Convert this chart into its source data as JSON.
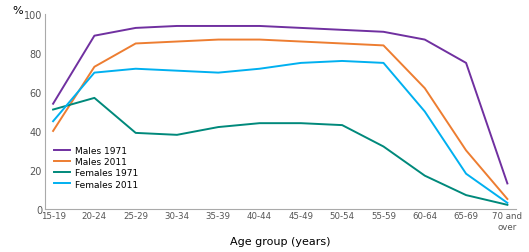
{
  "age_groups": [
    "15-19",
    "20-24",
    "25-29",
    "30-34",
    "35-39",
    "40-44",
    "45-49",
    "50-54",
    "55-59",
    "60-64",
    "65-69",
    "70 and\nover"
  ],
  "males_1971": [
    54,
    89,
    93,
    94,
    94,
    94,
    93,
    92,
    91,
    87,
    75,
    13
  ],
  "males_2011": [
    40,
    73,
    85,
    86,
    87,
    87,
    86,
    85,
    84,
    62,
    30,
    5
  ],
  "females_1971": [
    51,
    57,
    39,
    38,
    42,
    44,
    44,
    43,
    32,
    17,
    7,
    2
  ],
  "females_2011": [
    45,
    70,
    72,
    71,
    70,
    72,
    75,
    76,
    75,
    50,
    18,
    3
  ],
  "colors": {
    "males_1971": "#7030a0",
    "males_2011": "#ed7d31",
    "females_1971": "#00897b",
    "females_2011": "#00b0f0"
  },
  "labels": {
    "males_1971": "Males 1971",
    "males_2011": "Males 2011",
    "females_1971": "Females 1971",
    "females_2011": "Females 2011"
  },
  "ylabel": "%",
  "xlabel": "Age group (years)",
  "ylim": [
    0,
    100
  ],
  "yticks": [
    0,
    20,
    40,
    60,
    80,
    100
  ],
  "background_color": "#ffffff",
  "tick_color": "#555555",
  "spine_color": "#aaaaaa"
}
